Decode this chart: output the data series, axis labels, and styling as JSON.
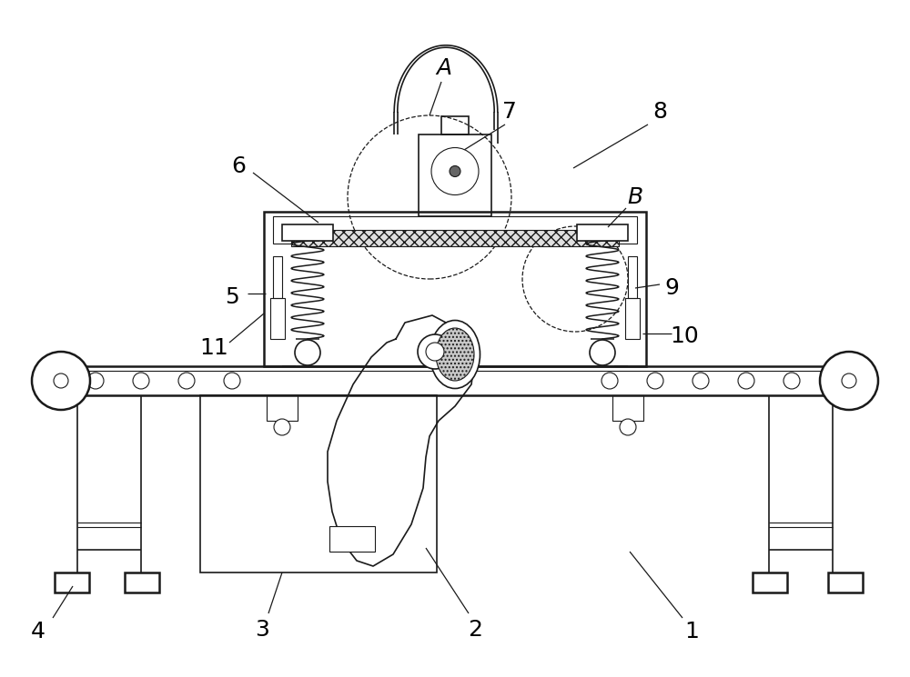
{
  "background_color": "#ffffff",
  "line_color": "#1a1a1a",
  "label_color": "#000000",
  "label_fontsize": 18,
  "fig_w": 10.0,
  "fig_h": 7.45,
  "dpi": 100
}
